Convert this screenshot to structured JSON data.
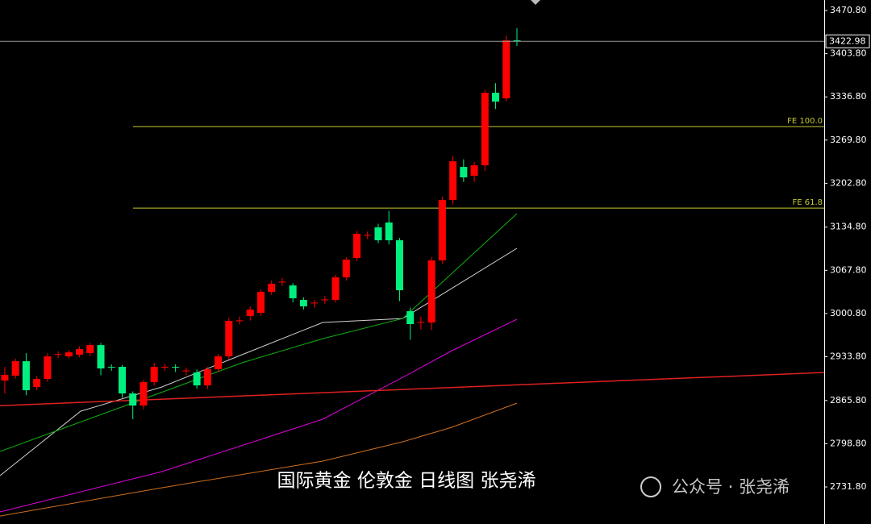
{
  "chart_data": {
    "type": "candlestick",
    "ylim": [
      2674.3,
      3487.1
    ],
    "yticks": [
      {
        "value": 3470.8,
        "label": "3470.80"
      },
      {
        "value": 3403.8,
        "label": "3403.80"
      },
      {
        "value": 3336.8,
        "label": "3336.80"
      },
      {
        "value": 3269.8,
        "label": "3269.80"
      },
      {
        "value": 3202.8,
        "label": "3202.80"
      },
      {
        "value": 3134.8,
        "label": "3134.80"
      },
      {
        "value": 3067.8,
        "label": "3067.80"
      },
      {
        "value": 3000.8,
        "label": "3000.80"
      },
      {
        "value": 2933.8,
        "label": "2933.80"
      },
      {
        "value": 2865.8,
        "label": "2865.80"
      },
      {
        "value": 2798.8,
        "label": "2798.80"
      },
      {
        "value": 2731.8,
        "label": "2731.80"
      }
    ],
    "xlim": [
      -0.45,
      76.8
    ],
    "up_color": "#ff0000",
    "down_color": "#00f080",
    "open": [
      2896.8,
      2904.3,
      2926.8,
      2886.8,
      2899.3,
      2936.8,
      2934.3,
      2936.8,
      2939.3,
      2951.8,
      2918.1,
      2918.1,
      2876.8,
      2858.0,
      2894.3,
      2917.5,
      2918.1,
      2911.8,
      2909.3,
      2889.3,
      2914.3,
      2934.3,
      2989.4,
      2996.9,
      3001.9,
      3034.4,
      3049.4,
      3044.4,
      3021.9,
      3016.9,
      3021.9,
      3021.9,
      3056.9,
      3086.9,
      3121.9,
      3134.4,
      3141.9,
      3114.4,
      3004.4,
      2986.9,
      2986.9,
      3083.1,
      3176.9,
      3228.2,
      3214.5,
      3230.7,
      3343.2,
      3334.5,
      3424.5
    ],
    "high": [
      2918,
      2931,
      2939.3,
      2904,
      2939,
      2942,
      2944,
      2950,
      2955,
      2955,
      2922,
      2921,
      2880,
      2898,
      2924,
      2923,
      2922,
      2917,
      2914,
      2918,
      2938,
      2994,
      2996,
      3012,
      3038,
      3052,
      3056,
      3048,
      3026,
      3022,
      3028,
      3061,
      3088,
      3129,
      3128,
      3140,
      3160,
      3118,
      3010,
      2996,
      3088,
      3182,
      3245,
      3240,
      3236,
      3348,
      3358,
      3432,
      3443.3
    ],
    "low": [
      2876.8,
      2900,
      2874,
      2882,
      2895,
      2932,
      2931,
      2933,
      2935,
      2905,
      2912,
      2870,
      2836.8,
      2852,
      2889,
      2912,
      2910,
      2905,
      2884,
      2884,
      2910,
      2930,
      2984,
      2990,
      2997,
      3030,
      3044,
      3018,
      3007,
      3010,
      3016,
      3018,
      3052,
      3082,
      3116,
      3110,
      3108,
      3020,
      2960,
      2976,
      2975,
      3078,
      3170,
      3205,
      3205,
      3222,
      3318,
      3330,
      3415.8
    ],
    "close": [
      2905.6,
      2926.8,
      2881.8,
      2899.3,
      2934.3,
      2937.8,
      2940.6,
      2945.6,
      2951.8,
      2915.6,
      2917.5,
      2876.8,
      2858.0,
      2894.3,
      2918.1,
      2918.1,
      2917.2,
      2912.5,
      2889.3,
      2914.3,
      2934.3,
      2989.4,
      2990.2,
      3006.9,
      3034.4,
      3046.9,
      3050.2,
      3024.4,
      3011.9,
      3017.7,
      3022.6,
      3056.9,
      3084.4,
      3124.4,
      3122.6,
      3114.4,
      3114.4,
      3036.9,
      2984.4,
      2987.6,
      3083.1,
      3176.9,
      3236.9,
      3212.0,
      3230.7,
      3343.2,
      3329.5,
      3424.5,
      3422.98
    ],
    "series": [
      {
        "color": "#e000e0",
        "x": [
          -0.45,
          14.7,
          29.8,
          37.3,
          41.9,
          48.0
        ],
        "values": [
          2693,
          2755.5,
          2836.8,
          2901.8,
          2943.1,
          2991.9
        ]
      },
      {
        "color": "#d07020",
        "x": [
          -0.45,
          14.7,
          29.8,
          37.3,
          41.9,
          48.0
        ],
        "values": [
          2686.7,
          2730.5,
          2771.8,
          2801.8,
          2824.3,
          2861.8
        ]
      },
      {
        "color": "#d0d0d0",
        "x": [
          -0.45,
          7.1,
          14.7,
          22.2,
          29.8,
          37.3,
          48.0
        ],
        "values": [
          2749.3,
          2849.3,
          2886.8,
          2936.8,
          2986.9,
          2993.1,
          3101.9
        ]
      },
      {
        "color": "#10b010",
        "x": [
          -0.45,
          10.9,
          22.2,
          29.8,
          37.3,
          48.0
        ],
        "values": [
          2786.8,
          2855.5,
          2924.3,
          2961.8,
          2993.1,
          3155.7
        ]
      },
      {
        "color": "#e02020",
        "x": [
          -0.45,
          76.8
        ],
        "values": [
          2857.9,
          2909.3
        ]
      }
    ],
    "levels": [
      {
        "label": "FE 100.0",
        "value": 3290.7,
        "color": "#c8c832"
      },
      {
        "label": "FE 61.8",
        "value": 3164.4,
        "color": "#c8c832"
      }
    ],
    "last_price": 3422.98,
    "caption": "国际黄金 伦敦金 日线图 张尧浠",
    "watermark": "公众号 · 张尧浠"
  }
}
